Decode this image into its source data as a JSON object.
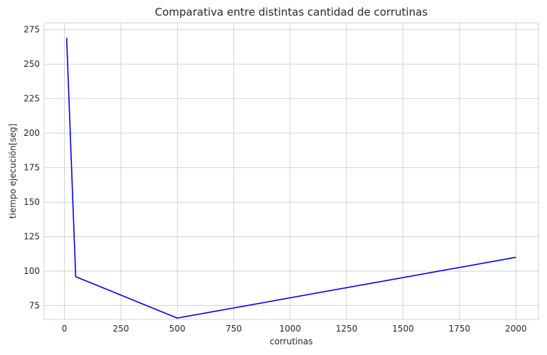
{
  "chart_data": {
    "type": "line",
    "title": "Comparativa entre distintas cantidad de corrutinas",
    "xlabel": "corrutinas",
    "ylabel": "tiempo ejecución[seg]",
    "xlim": [
      -90,
      2100
    ],
    "ylim": [
      65,
      280
    ],
    "xticks": [
      0,
      250,
      500,
      750,
      1000,
      1250,
      1500,
      1750,
      2000
    ],
    "yticks": [
      75,
      100,
      125,
      150,
      175,
      200,
      225,
      250,
      275
    ],
    "grid": true,
    "series": [
      {
        "color": "#0000ee",
        "x": [
          10,
          50,
          500,
          2000
        ],
        "y": [
          269,
          96,
          66,
          110
        ]
      }
    ]
  }
}
